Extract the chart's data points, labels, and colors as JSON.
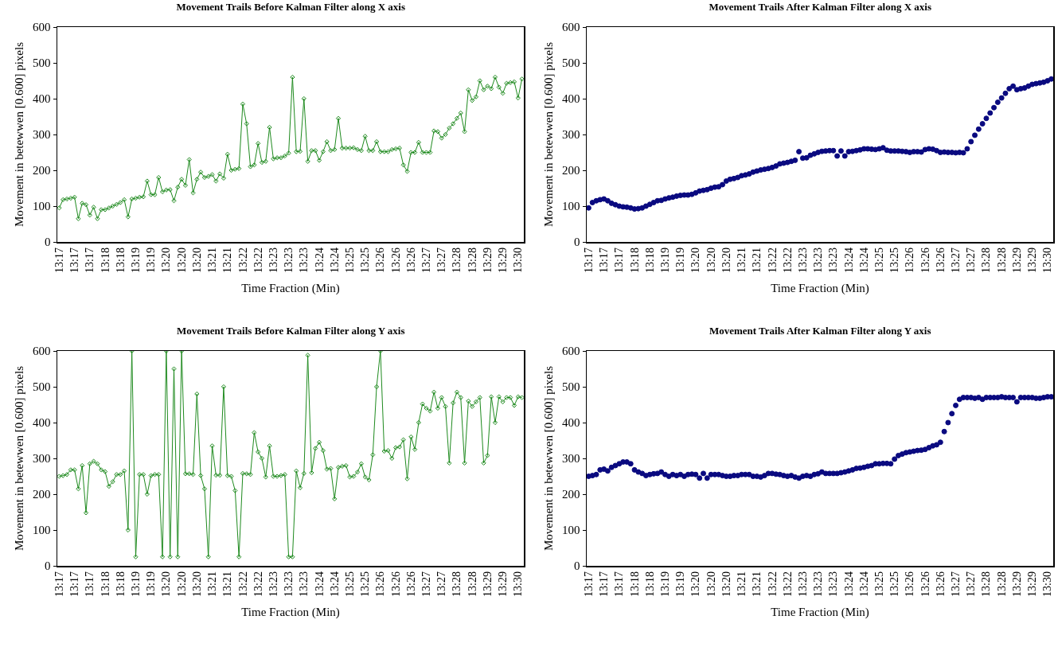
{
  "chart_data": [
    {
      "type": "line",
      "title": "Movement Trails Before Kalman Filter along X axis",
      "xlabel": "Time Fraction (Min)",
      "ylabel": "Movement in betewwen [0.600] pixels",
      "color": "#1e8a1e",
      "marker": "diamond",
      "grid": false,
      "ylim": [
        0,
        600
      ],
      "yticks": [
        0,
        100,
        200,
        300,
        400,
        500,
        600
      ],
      "categories": [
        "13:17",
        null,
        null,
        null,
        "13:17",
        null,
        null,
        null,
        "13:17",
        null,
        null,
        null,
        "13:18",
        null,
        null,
        null,
        "13:18",
        null,
        null,
        null,
        "13:19",
        null,
        null,
        null,
        "13:19",
        null,
        null,
        null,
        "13:20",
        null,
        null,
        null,
        "13:20",
        null,
        null,
        null,
        "13:20",
        null,
        null,
        null,
        "13:21",
        null,
        null,
        null,
        "13:21",
        null,
        null,
        null,
        "13:22",
        null,
        null,
        null,
        "13:22",
        null,
        null,
        null,
        "13:23",
        null,
        null,
        null,
        "13:23",
        null,
        null,
        null,
        "13:23",
        null,
        null,
        null,
        "13:24",
        null,
        null,
        null,
        "13:24",
        null,
        null,
        null,
        "13:25",
        null,
        null,
        null,
        "13:25",
        null,
        null,
        null,
        "13:26",
        null,
        null,
        null,
        "13:26",
        null,
        null,
        null,
        "13:26",
        null,
        null,
        null,
        "13:27",
        null,
        null,
        null,
        "13:27",
        null,
        null,
        null,
        "13:28",
        null,
        null,
        null,
        "13:28",
        null,
        null,
        null,
        "13:29",
        null,
        null,
        null,
        "13:29",
        null,
        null,
        null,
        "13:30",
        null
      ],
      "values": [
        95,
        118,
        120,
        122,
        125,
        65,
        108,
        104,
        75,
        97,
        65,
        90,
        90,
        95,
        100,
        105,
        110,
        118,
        70,
        120,
        122,
        125,
        126,
        170,
        132,
        132,
        180,
        140,
        145,
        146,
        115,
        153,
        175,
        158,
        230,
        137,
        175,
        195,
        180,
        183,
        188,
        170,
        190,
        178,
        245,
        200,
        203,
        205,
        385,
        330,
        210,
        215,
        275,
        222,
        225,
        320,
        232,
        235,
        235,
        240,
        248,
        460,
        252,
        253,
        400,
        225,
        255,
        255,
        228,
        252,
        280,
        255,
        258,
        345,
        262,
        262,
        262,
        263,
        258,
        255,
        295,
        255,
        255,
        280,
        252,
        252,
        252,
        258,
        260,
        262,
        215,
        197,
        250,
        250,
        278,
        250,
        250,
        250,
        310,
        308,
        290,
        300,
        318,
        330,
        345,
        360,
        308,
        425,
        395,
        405,
        450,
        425,
        435,
        428,
        460,
        432,
        415,
        443,
        445,
        447,
        402,
        455
      ]
    },
    {
      "type": "scatter",
      "title": "Movement Trails After Kalman Filter along X axis",
      "xlabel": "Time Fraction (Min)",
      "ylabel": "Movement in betewwen [0.600] pixels",
      "color": "#0a0a80",
      "marker": "circle",
      "grid": false,
      "ylim": [
        0,
        600
      ],
      "yticks": [
        0,
        100,
        200,
        300,
        400,
        500,
        600
      ],
      "categories": [
        "13:17",
        null,
        null,
        null,
        "13:17",
        null,
        null,
        null,
        "13:17",
        null,
        null,
        null,
        "13:18",
        null,
        null,
        null,
        "13:18",
        null,
        null,
        null,
        "13:19",
        null,
        null,
        null,
        "13:19",
        null,
        null,
        null,
        "13:20",
        null,
        null,
        null,
        "13:20",
        null,
        null,
        null,
        "13:20",
        null,
        null,
        null,
        "13:21",
        null,
        null,
        null,
        "13:21",
        null,
        null,
        null,
        "13:22",
        null,
        null,
        null,
        "13:22",
        null,
        null,
        null,
        "13:23",
        null,
        null,
        null,
        "13:23",
        null,
        null,
        null,
        "13:23",
        null,
        null,
        null,
        "13:24",
        null,
        null,
        null,
        "13:24",
        null,
        null,
        null,
        "13:25",
        null,
        null,
        null,
        "13:25",
        null,
        null,
        null,
        "13:26",
        null,
        null,
        null,
        "13:26",
        null,
        null,
        null,
        "13:26",
        null,
        null,
        null,
        "13:27",
        null,
        null,
        null,
        "13:27",
        null,
        null,
        null,
        "13:28",
        null,
        null,
        null,
        "13:28",
        null,
        null,
        null,
        "13:29",
        null,
        null,
        null,
        "13:29",
        null,
        null,
        null,
        "13:30",
        null
      ],
      "values": [
        95,
        110,
        115,
        118,
        120,
        115,
        108,
        104,
        100,
        98,
        97,
        95,
        92,
        93,
        95,
        100,
        105,
        110,
        115,
        116,
        120,
        123,
        125,
        128,
        130,
        131,
        131,
        133,
        137,
        142,
        144,
        146,
        150,
        153,
        154,
        160,
        170,
        175,
        177,
        180,
        185,
        187,
        190,
        195,
        198,
        201,
        203,
        205,
        208,
        212,
        218,
        220,
        222,
        225,
        228,
        252,
        234,
        235,
        242,
        246,
        250,
        253,
        254,
        255,
        255,
        240,
        254,
        240,
        252,
        253,
        255,
        257,
        260,
        260,
        259,
        258,
        260,
        263,
        256,
        254,
        254,
        254,
        253,
        252,
        250,
        252,
        252,
        251,
        258,
        260,
        259,
        255,
        250,
        251,
        250,
        250,
        249,
        250,
        249,
        260,
        280,
        298,
        315,
        330,
        345,
        360,
        375,
        390,
        402,
        415,
        428,
        435,
        425,
        428,
        430,
        435,
        440,
        442,
        444,
        446,
        450,
        455
      ]
    },
    {
      "type": "line",
      "title": "Movement Trails Before Kalman Filter along Y axis",
      "xlabel": "Time Fraction (Min)",
      "ylabel": "Movement in betewwen [0.600] pixels",
      "color": "#1e8a1e",
      "marker": "diamond",
      "grid": false,
      "ylim": [
        0,
        600
      ],
      "yticks": [
        0,
        100,
        200,
        300,
        400,
        500,
        600
      ],
      "categories": [
        "13:17",
        null,
        null,
        null,
        "13:17",
        null,
        null,
        null,
        "13:17",
        null,
        null,
        null,
        "13:18",
        null,
        null,
        null,
        "13:18",
        null,
        null,
        null,
        "13:19",
        null,
        null,
        null,
        "13:19",
        null,
        null,
        null,
        "13:20",
        null,
        null,
        null,
        "13:20",
        null,
        null,
        null,
        "13:20",
        null,
        null,
        null,
        "13:21",
        null,
        null,
        null,
        "13:21",
        null,
        null,
        null,
        "13:22",
        null,
        null,
        null,
        "13:22",
        null,
        null,
        null,
        "13:23",
        null,
        null,
        null,
        "13:23",
        null,
        null,
        null,
        "13:23",
        null,
        null,
        null,
        "13:24",
        null,
        null,
        null,
        "13:24",
        null,
        null,
        null,
        "13:25",
        null,
        null,
        null,
        "13:25",
        null,
        null,
        null,
        "13:26",
        null,
        null,
        null,
        "13:26",
        null,
        null,
        null,
        "13:26",
        null,
        null,
        null,
        "13:27",
        null,
        null,
        null,
        "13:27",
        null,
        null,
        null,
        "13:28",
        null,
        null,
        null,
        "13:28",
        null,
        null,
        null,
        "13:29",
        null,
        null,
        null,
        "13:29",
        null,
        null,
        null,
        "13:30",
        null
      ],
      "values": [
        250,
        252,
        255,
        268,
        268,
        215,
        280,
        148,
        285,
        292,
        285,
        268,
        263,
        222,
        235,
        255,
        255,
        265,
        100,
        600,
        25,
        255,
        255,
        200,
        252,
        255,
        255,
        25,
        600,
        25,
        550,
        25,
        600,
        257,
        257,
        255,
        480,
        252,
        215,
        25,
        335,
        253,
        253,
        500,
        252,
        250,
        210,
        25,
        258,
        257,
        255,
        372,
        318,
        300,
        248,
        335,
        250,
        250,
        252,
        255,
        25,
        25,
        265,
        218,
        258,
        588,
        260,
        328,
        345,
        322,
        270,
        272,
        187,
        275,
        278,
        280,
        248,
        250,
        262,
        285,
        248,
        240,
        310,
        500,
        600,
        320,
        322,
        300,
        330,
        332,
        352,
        243,
        360,
        325,
        400,
        452,
        440,
        432,
        485,
        440,
        470,
        445,
        287,
        455,
        485,
        470,
        287,
        460,
        445,
        458,
        470,
        287,
        308,
        472,
        400,
        472,
        458,
        470,
        470,
        448,
        472,
        470
      ]
    },
    {
      "type": "scatter",
      "title": "Movement Trails After Kalman Filter along Y axis",
      "xlabel": "Time Fraction (Min)",
      "ylabel": "Movement in betewwen [0.600] pixels",
      "color": "#0a0a80",
      "marker": "circle",
      "grid": false,
      "ylim": [
        0,
        600
      ],
      "yticks": [
        0,
        100,
        200,
        300,
        400,
        500,
        600
      ],
      "categories": [
        "13:17",
        null,
        null,
        null,
        "13:17",
        null,
        null,
        null,
        "13:17",
        null,
        null,
        null,
        "13:18",
        null,
        null,
        null,
        "13:18",
        null,
        null,
        null,
        "13:19",
        null,
        null,
        null,
        "13:19",
        null,
        null,
        null,
        "13:20",
        null,
        null,
        null,
        "13:20",
        null,
        null,
        null,
        "13:20",
        null,
        null,
        null,
        "13:21",
        null,
        null,
        null,
        "13:21",
        null,
        null,
        null,
        "13:22",
        null,
        null,
        null,
        "13:22",
        null,
        null,
        null,
        "13:23",
        null,
        null,
        null,
        "13:23",
        null,
        null,
        null,
        "13:23",
        null,
        null,
        null,
        "13:24",
        null,
        null,
        null,
        "13:24",
        null,
        null,
        null,
        "13:25",
        null,
        null,
        null,
        "13:25",
        null,
        null,
        null,
        "13:26",
        null,
        null,
        null,
        "13:26",
        null,
        null,
        null,
        "13:26",
        null,
        null,
        null,
        "13:27",
        null,
        null,
        null,
        "13:27",
        null,
        null,
        null,
        "13:28",
        null,
        null,
        null,
        "13:28",
        null,
        null,
        null,
        "13:29",
        null,
        null,
        null,
        "13:29",
        null,
        null,
        null,
        "13:30",
        null
      ],
      "values": [
        250,
        252,
        255,
        268,
        270,
        265,
        275,
        280,
        285,
        290,
        290,
        285,
        268,
        262,
        258,
        252,
        255,
        257,
        258,
        262,
        255,
        250,
        255,
        252,
        255,
        250,
        255,
        256,
        255,
        245,
        258,
        245,
        255,
        255,
        255,
        252,
        250,
        250,
        252,
        252,
        255,
        255,
        255,
        250,
        250,
        248,
        252,
        258,
        258,
        256,
        255,
        252,
        250,
        252,
        248,
        245,
        250,
        252,
        250,
        255,
        257,
        262,
        258,
        258,
        258,
        258,
        260,
        262,
        265,
        268,
        272,
        273,
        275,
        278,
        280,
        285,
        285,
        286,
        286,
        285,
        298,
        308,
        312,
        316,
        318,
        320,
        322,
        323,
        325,
        330,
        335,
        338,
        345,
        375,
        400,
        425,
        448,
        465,
        470,
        470,
        470,
        468,
        470,
        465,
        470,
        470,
        470,
        470,
        472,
        470,
        470,
        470,
        458,
        470,
        470,
        470,
        470,
        468,
        468,
        470,
        472,
        472
      ]
    }
  ]
}
